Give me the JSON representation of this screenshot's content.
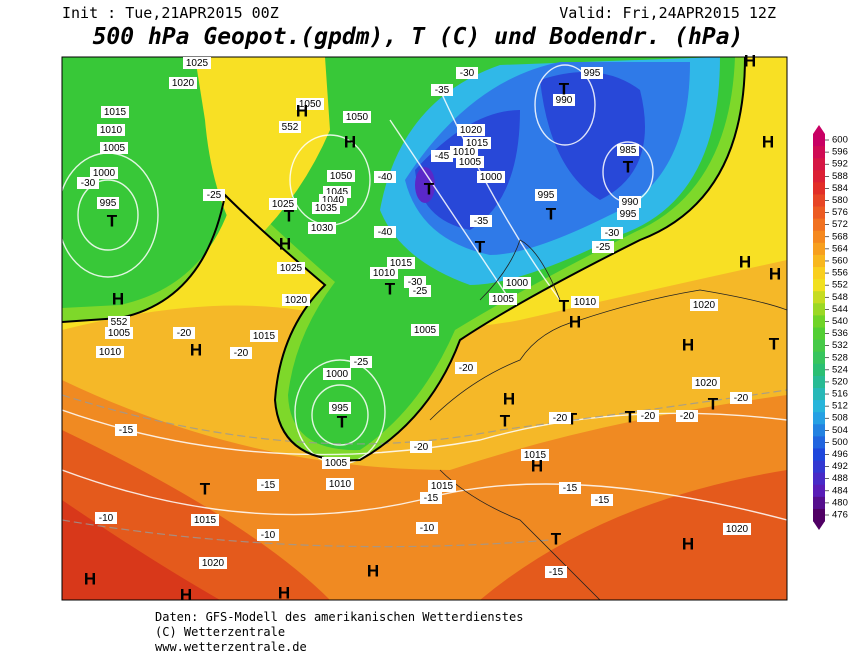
{
  "header": {
    "init": "Init : Tue,21APR2015 00Z",
    "valid": "Valid: Fri,24APR2015 12Z",
    "title": "500 hPa Geopot.(gpdm), T (C) und Bodendr. (hPa)"
  },
  "colorbar": {
    "levels": [
      600,
      596,
      592,
      588,
      584,
      580,
      576,
      572,
      568,
      564,
      560,
      556,
      552,
      548,
      544,
      540,
      536,
      532,
      528,
      524,
      520,
      516,
      512,
      508,
      504,
      500,
      496,
      492,
      488,
      484,
      480,
      476
    ]
  },
  "map": {
    "labels": [
      "1025",
      "1020",
      "1015",
      "1010",
      "1005",
      "1000",
      "995",
      "T",
      "H",
      "-30",
      "-25",
      "1050",
      "1050",
      "552",
      "H",
      "H",
      "1050",
      "1045",
      "1040",
      "1035",
      "1030",
      "1025",
      "T",
      "H",
      "1025",
      "1020",
      "-40",
      "-45",
      "1015",
      "1010",
      "1005",
      "1020",
      "1000",
      "-35",
      "-30",
      "T",
      "-40",
      "1015",
      "1010",
      "T",
      "-30",
      "-25",
      "T",
      "-35",
      "995",
      "T",
      "1000",
      "1005",
      "1010",
      "T",
      "H",
      "995",
      "990",
      "T",
      "985",
      "T",
      "990",
      "995",
      "-25",
      "-30",
      "H",
      "H",
      "H",
      "H",
      "T",
      "1020",
      "H",
      "1020",
      "-20",
      "T",
      "-20",
      "-20",
      "T",
      "1015",
      "H",
      "T",
      "-20",
      "T",
      "H",
      "-20",
      "1005",
      "-25",
      "1000",
      "995",
      "T",
      "1005",
      "1010",
      "1015",
      "-20",
      "-15",
      "-15",
      "-15",
      "T",
      "-10",
      "1015",
      "-10",
      "-10",
      "-15",
      "-15",
      "T",
      "H",
      "1020",
      "-15",
      "1020",
      "H",
      "H",
      "H",
      "H",
      "-20",
      "-20",
      "1015",
      "H",
      "552",
      "1005",
      "1010"
    ]
  },
  "footer": {
    "lines": [
      "Daten: GFS-Modell des amerikanischen Wetterdienstes",
      "(C) Wetterzentrale",
      "www.wetterzentrale.de"
    ]
  }
}
